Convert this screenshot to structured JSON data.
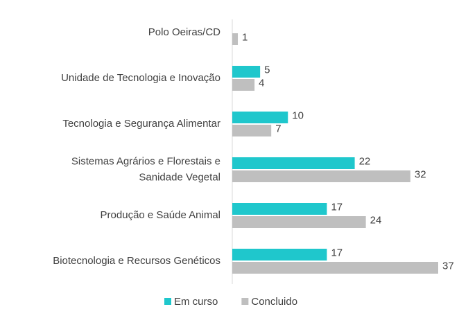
{
  "chart_data": {
    "type": "bar",
    "orientation": "horizontal",
    "categories": [
      "Polo Oeiras/CD",
      "Unidade de Tecnologia e Inovação",
      "Tecnologia e Segurança Alimentar",
      "Sistemas Agrários e Florestais e\nSanidade Vegetal",
      "Produção e Saúde Animal",
      "Biotecnologia e Recursos Genéticos"
    ],
    "series": [
      {
        "name": "Em curso",
        "color": "#1fc7cc",
        "values": [
          null,
          5,
          10,
          22,
          17,
          17
        ]
      },
      {
        "name": "Concluido",
        "color": "#bfbfbf",
        "values": [
          1,
          4,
          7,
          32,
          24,
          37
        ]
      }
    ],
    "xlim": [
      0,
      37
    ],
    "legend": "bottom"
  }
}
